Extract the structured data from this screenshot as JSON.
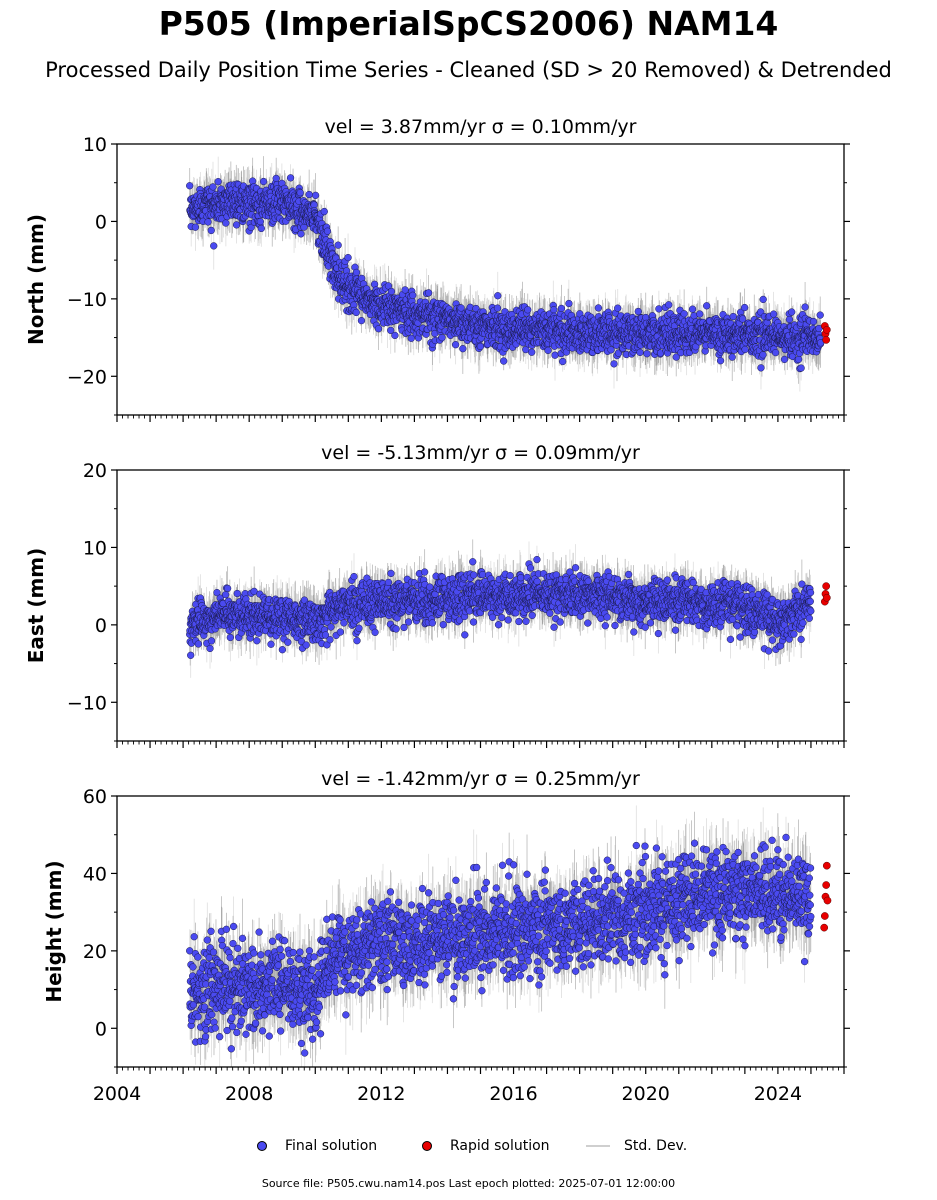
{
  "header": {
    "title": "P505 (ImperialSpCS2006) NAM14",
    "subtitle": "Processed Daily Position Time Series - Cleaned (SD > 20 Removed) & Detrended"
  },
  "legend": {
    "final_label": "Final solution",
    "rapid_label": "Rapid solution",
    "std_label": "Std. Dev.",
    "final_color": "#4a4af0",
    "rapid_color": "#e80000",
    "std_color": "#cfcfcf"
  },
  "footer": {
    "source": "Source file: P505.cwu.nam14.pos  Last epoch plotted: 2025-07-01 12:00:00"
  },
  "chart_data": [
    {
      "type": "scatter",
      "title": "vel = 3.87mm/yr   σ = 0.10mm/yr",
      "ylabel": "North (mm)",
      "xlim": [
        2004,
        2026
      ],
      "ylim": [
        -25,
        10
      ],
      "yticks": [
        -20,
        -10,
        0,
        10
      ],
      "ytick_labels": [
        "−20",
        "−10",
        "0",
        "10"
      ],
      "series": [
        {
          "name": "Final solution",
          "x": [
            2006.2,
            2006.6,
            2007.0,
            2007.5,
            2008.0,
            2008.5,
            2009.0,
            2009.5,
            2010.0,
            2010.3,
            2010.6,
            2011.0,
            2011.5,
            2012.0,
            2013.0,
            2014.0,
            2015.0,
            2016.0,
            2017.0,
            2018.0,
            2019.0,
            2020.0,
            2021.0,
            2022.0,
            2023.0,
            2024.0,
            2025.0,
            2025.3
          ],
          "y": [
            1.0,
            2.5,
            2.0,
            3.0,
            2.0,
            2.5,
            2.5,
            1.5,
            1.0,
            -3.0,
            -6.5,
            -8.5,
            -10.0,
            -11.0,
            -12.0,
            -12.5,
            -13.5,
            -14.0,
            -14.0,
            -14.5,
            -14.5,
            -14.5,
            -14.5,
            -14.5,
            -14.5,
            -15.0,
            -15.0,
            -15.0
          ]
        },
        {
          "name": "Rapid solution",
          "x": [
            2025.42,
            2025.44,
            2025.46,
            2025.48
          ],
          "y": [
            -13.5,
            -14.5,
            -15.3,
            -14.0
          ]
        }
      ]
    },
    {
      "type": "scatter",
      "title": "vel = -5.13mm/yr   σ = 0.09mm/yr",
      "ylabel": "East (mm)",
      "xlim": [
        2004,
        2026
      ],
      "ylim": [
        -15,
        20
      ],
      "yticks": [
        -10,
        0,
        10,
        20
      ],
      "ytick_labels": [
        "−10",
        "0",
        "10",
        "20"
      ],
      "series": [
        {
          "name": "Final solution",
          "x": [
            2006.2,
            2006.5,
            2007.0,
            2007.5,
            2008.0,
            2009.0,
            2010.0,
            2010.5,
            2011.0,
            2012.0,
            2013.0,
            2014.0,
            2015.0,
            2016.0,
            2017.0,
            2018.0,
            2019.0,
            2020.0,
            2021.0,
            2022.0,
            2023.0,
            2023.8,
            2024.0,
            2024.5,
            2025.0
          ],
          "y": [
            -0.5,
            0.5,
            1.0,
            1.5,
            1.0,
            1.0,
            0.5,
            2.0,
            2.5,
            3.0,
            3.0,
            3.5,
            4.0,
            3.5,
            4.0,
            4.0,
            3.5,
            3.0,
            3.0,
            2.5,
            2.5,
            1.0,
            0.5,
            1.5,
            3.0
          ]
        },
        {
          "name": "Rapid solution",
          "x": [
            2025.42,
            2025.44,
            2025.46,
            2025.48
          ],
          "y": [
            3.0,
            4.0,
            5.0,
            3.5
          ]
        }
      ]
    },
    {
      "type": "scatter",
      "title": "vel = -1.42mm/yr   σ = 0.25mm/yr",
      "ylabel": "Height (mm)",
      "xlabel": "",
      "xlim": [
        2004,
        2026
      ],
      "ylim": [
        -10,
        60
      ],
      "xticks": [
        2004,
        2008,
        2012,
        2016,
        2020,
        2024
      ],
      "yticks": [
        0,
        20,
        40,
        60
      ],
      "ytick_labels": [
        "0",
        "20",
        "40",
        "60"
      ],
      "series": [
        {
          "name": "Final solution",
          "x": [
            2006.2,
            2007.0,
            2008.0,
            2009.0,
            2010.0,
            2010.3,
            2011.0,
            2012.0,
            2013.0,
            2014.0,
            2015.0,
            2016.0,
            2017.0,
            2018.0,
            2019.0,
            2020.0,
            2021.0,
            2022.0,
            2023.0,
            2024.0,
            2025.0
          ],
          "y": [
            10,
            10,
            10,
            11,
            8,
            16,
            20,
            22,
            23,
            24,
            24,
            25,
            26,
            27,
            28,
            30,
            33,
            35,
            36,
            35,
            34
          ]
        },
        {
          "name": "Rapid solution",
          "x": [
            2025.4,
            2025.42,
            2025.44,
            2025.46,
            2025.48,
            2025.5
          ],
          "y": [
            26,
            29,
            34,
            37,
            42,
            33
          ]
        }
      ]
    }
  ]
}
